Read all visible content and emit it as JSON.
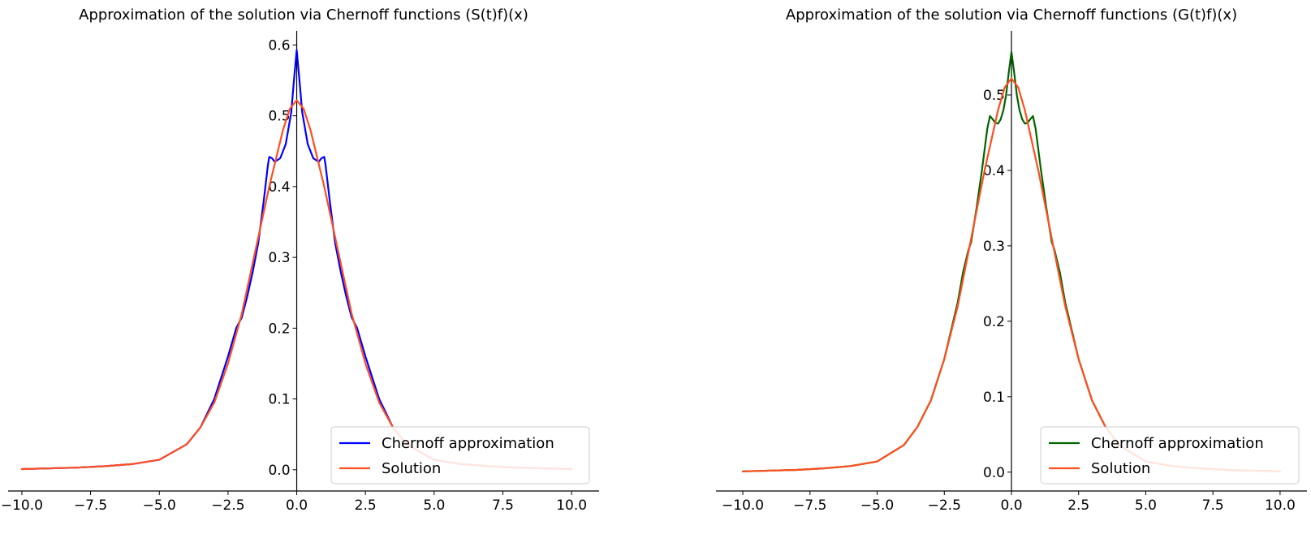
{
  "chart_data": [
    {
      "type": "line",
      "title": "Approximation of the solution via Chernoff functions (S(t)f)(x)",
      "xlabel": "",
      "ylabel": "",
      "xlim": [
        -10.5,
        11.0
      ],
      "ylim": [
        -0.03,
        0.62
      ],
      "x_ticks": [
        "−10.0",
        "−7.5",
        "−5.0",
        "−2.5",
        "0.0",
        "2.5",
        "5.0",
        "7.5",
        "10.0"
      ],
      "y_ticks": [
        "0.0",
        "0.1",
        "0.2",
        "0.3",
        "0.4",
        "0.5",
        "0.6"
      ],
      "spines": "centered at origin (left spine at x=0, bottom spine at y≈-0.03)",
      "legend_position": "lower right",
      "series": [
        {
          "name": "Chernoff approximation",
          "color": "#0000ff",
          "x": [
            -10,
            -8,
            -7,
            -6,
            -5,
            -4,
            -3.5,
            -3,
            -2.5,
            -2.2,
            -2,
            -1.8,
            -1.6,
            -1.4,
            -1.2,
            -1.05,
            -1.0,
            -0.9,
            -0.8,
            -0.6,
            -0.4,
            -0.2,
            -0.1,
            0,
            0.1,
            0.2,
            0.4,
            0.6,
            0.8,
            0.9,
            1.0,
            1.05,
            1.2,
            1.4,
            1.6,
            1.8,
            2.0,
            2.2,
            2.5,
            3,
            3.5,
            4,
            5,
            6,
            7,
            8,
            10
          ],
          "y": [
            0.001,
            0.003,
            0.005,
            0.008,
            0.014,
            0.036,
            0.06,
            0.1,
            0.16,
            0.2,
            0.215,
            0.245,
            0.28,
            0.32,
            0.38,
            0.43,
            0.442,
            0.44,
            0.435,
            0.44,
            0.46,
            0.505,
            0.55,
            0.593,
            0.55,
            0.505,
            0.46,
            0.44,
            0.435,
            0.44,
            0.442,
            0.43,
            0.38,
            0.32,
            0.28,
            0.245,
            0.215,
            0.2,
            0.16,
            0.1,
            0.06,
            0.036,
            0.014,
            0.008,
            0.005,
            0.003,
            0.001
          ]
        },
        {
          "name": "Solution",
          "color": "#ff4f1f",
          "x": [
            -10,
            -8,
            -7,
            -6,
            -5,
            -4,
            -3.5,
            -3,
            -2.5,
            -2,
            -1.5,
            -1,
            -0.5,
            -0.25,
            0,
            0.25,
            0.5,
            1,
            1.5,
            2,
            2.5,
            3,
            3.5,
            4,
            5,
            6,
            7,
            8,
            10
          ],
          "y": [
            0.001,
            0.003,
            0.005,
            0.008,
            0.014,
            0.036,
            0.06,
            0.095,
            0.15,
            0.22,
            0.31,
            0.4,
            0.48,
            0.51,
            0.522,
            0.51,
            0.48,
            0.4,
            0.31,
            0.22,
            0.15,
            0.095,
            0.06,
            0.036,
            0.014,
            0.008,
            0.005,
            0.003,
            0.001
          ]
        }
      ]
    },
    {
      "type": "line",
      "title": "Approximation of the solution via Chernoff functions (G(t)f)(x)",
      "xlabel": "",
      "ylabel": "",
      "xlim": [
        -11.0,
        11.0
      ],
      "ylim": [
        -0.025,
        0.585
      ],
      "x_ticks": [
        "−10.0",
        "−7.5",
        "−5.0",
        "−2.5",
        "0.0",
        "2.5",
        "5.0",
        "7.5",
        "10.0"
      ],
      "y_ticks": [
        "0.0",
        "0.1",
        "0.2",
        "0.3",
        "0.4",
        "0.5"
      ],
      "spines": "centered at origin (left spine at x=0, bottom spine at y≈-0.025)",
      "legend_position": "lower right",
      "series": [
        {
          "name": "Chernoff approximation",
          "color": "#006400",
          "x": [
            -10,
            -8,
            -7,
            -6,
            -5,
            -4,
            -3.5,
            -3,
            -2.5,
            -2,
            -1.8,
            -1.6,
            -1.5,
            -1.3,
            -1.1,
            -0.9,
            -0.8,
            -0.7,
            -0.6,
            -0.5,
            -0.4,
            -0.3,
            -0.2,
            -0.1,
            0,
            0.1,
            0.2,
            0.3,
            0.4,
            0.5,
            0.6,
            0.7,
            0.8,
            0.9,
            1.1,
            1.3,
            1.5,
            1.6,
            1.8,
            2,
            2.5,
            3,
            3.5,
            4,
            5,
            6,
            7,
            8,
            10
          ],
          "y": [
            0.001,
            0.003,
            0.005,
            0.008,
            0.014,
            0.036,
            0.06,
            0.095,
            0.15,
            0.225,
            0.265,
            0.295,
            0.305,
            0.35,
            0.4,
            0.455,
            0.472,
            0.468,
            0.463,
            0.462,
            0.468,
            0.48,
            0.5,
            0.53,
            0.557,
            0.53,
            0.5,
            0.48,
            0.468,
            0.462,
            0.463,
            0.468,
            0.472,
            0.455,
            0.4,
            0.35,
            0.305,
            0.295,
            0.265,
            0.225,
            0.15,
            0.095,
            0.06,
            0.036,
            0.014,
            0.008,
            0.005,
            0.003,
            0.001
          ]
        },
        {
          "name": "Solution",
          "color": "#ff4f1f",
          "x": [
            -10,
            -8,
            -7,
            -6,
            -5,
            -4,
            -3.5,
            -3,
            -2.5,
            -2,
            -1.5,
            -1,
            -0.5,
            -0.25,
            0,
            0.25,
            0.5,
            1,
            1.5,
            2,
            2.5,
            3,
            3.5,
            4,
            5,
            6,
            7,
            8,
            10
          ],
          "y": [
            0.001,
            0.003,
            0.005,
            0.008,
            0.014,
            0.036,
            0.06,
            0.095,
            0.15,
            0.22,
            0.31,
            0.4,
            0.48,
            0.51,
            0.522,
            0.51,
            0.48,
            0.4,
            0.31,
            0.22,
            0.15,
            0.095,
            0.06,
            0.036,
            0.014,
            0.008,
            0.005,
            0.003,
            0.001
          ]
        }
      ]
    }
  ]
}
